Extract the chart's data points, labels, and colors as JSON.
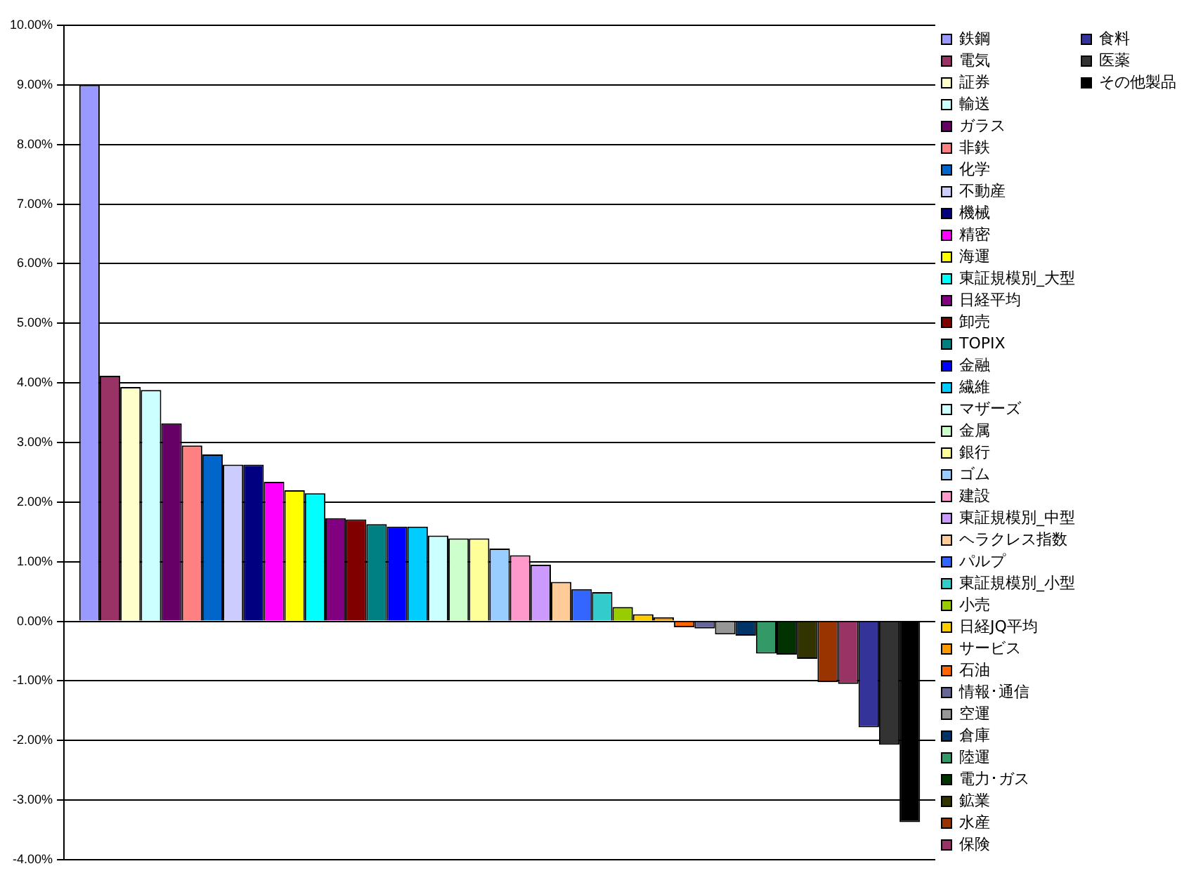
{
  "chart_data": {
    "type": "bar",
    "categories": [
      null
    ],
    "ylim": [
      -4,
      10
    ],
    "yticks": [
      {
        "value": -4,
        "label": "-4.00%"
      },
      {
        "value": -3,
        "label": "-3.00%"
      },
      {
        "value": -2,
        "label": "-2.00%"
      },
      {
        "value": -1,
        "label": "-1.00%"
      },
      {
        "value": 0,
        "label": "0.00%"
      },
      {
        "value": 1,
        "label": "1.00%"
      },
      {
        "value": 2,
        "label": "2.00%"
      },
      {
        "value": 3,
        "label": "3.00%"
      },
      {
        "value": 4,
        "label": "4.00%"
      },
      {
        "value": 5,
        "label": "5.00%"
      },
      {
        "value": 6,
        "label": "6.00%"
      },
      {
        "value": 7,
        "label": "7.00%"
      },
      {
        "value": 8,
        "label": "8.00%"
      },
      {
        "value": 9,
        "label": "9.00%"
      },
      {
        "value": 10,
        "label": "10.00%"
      }
    ],
    "grid": "y",
    "legend": "right",
    "tick_labels": "y",
    "series": [
      {
        "name": "鉄鋼",
        "color": "#9999ff",
        "values": [
          9.0
        ]
      },
      {
        "name": "電気",
        "color": "#993366",
        "values": [
          4.12
        ]
      },
      {
        "name": "証券",
        "color": "#ffffcc",
        "values": [
          3.93
        ]
      },
      {
        "name": "輸送",
        "color": "#ccffff",
        "values": [
          3.88
        ]
      },
      {
        "name": "ガラス",
        "color": "#660066",
        "values": [
          3.32
        ]
      },
      {
        "name": "非鉄",
        "color": "#ff8080",
        "values": [
          2.95
        ]
      },
      {
        "name": "化学",
        "color": "#0066cc",
        "values": [
          2.8
        ]
      },
      {
        "name": "不動産",
        "color": "#ccccff",
        "values": [
          2.63
        ]
      },
      {
        "name": "機械",
        "color": "#000080",
        "values": [
          2.63
        ]
      },
      {
        "name": "精密",
        "color": "#ff00ff",
        "values": [
          2.34
        ]
      },
      {
        "name": "海運",
        "color": "#ffff00",
        "values": [
          2.2
        ]
      },
      {
        "name": "東証規模別_大型",
        "color": "#00ffff",
        "values": [
          2.15
        ]
      },
      {
        "name": "日経平均",
        "color": "#800080",
        "values": [
          1.73
        ]
      },
      {
        "name": "卸売",
        "color": "#800000",
        "values": [
          1.71
        ]
      },
      {
        "name": "TOPIX",
        "color": "#008080",
        "values": [
          1.63
        ]
      },
      {
        "name": "金融",
        "color": "#0000ff",
        "values": [
          1.59
        ]
      },
      {
        "name": "繊維",
        "color": "#00ccff",
        "values": [
          1.59
        ]
      },
      {
        "name": "マザーズ",
        "color": "#ccffff",
        "values": [
          1.44
        ]
      },
      {
        "name": "金属",
        "color": "#ccffcc",
        "values": [
          1.39
        ]
      },
      {
        "name": "銀行",
        "color": "#ffff99",
        "values": [
          1.39
        ]
      },
      {
        "name": "ゴム",
        "color": "#99ccff",
        "values": [
          1.22
        ]
      },
      {
        "name": "建設",
        "color": "#ff99cc",
        "values": [
          1.11
        ]
      },
      {
        "name": "東証規模別_中型",
        "color": "#cc99ff",
        "values": [
          0.95
        ]
      },
      {
        "name": "ヘラクレス指数",
        "color": "#ffcc99",
        "values": [
          0.66
        ]
      },
      {
        "name": "パルプ",
        "color": "#3366ff",
        "values": [
          0.54
        ]
      },
      {
        "name": "東証規模別_小型",
        "color": "#33cccc",
        "values": [
          0.49
        ]
      },
      {
        "name": "小売",
        "color": "#99cc00",
        "values": [
          0.24
        ]
      },
      {
        "name": "日経JQ平均",
        "color": "#ffcc00",
        "values": [
          0.12
        ]
      },
      {
        "name": "サービス",
        "color": "#ff9900",
        "values": [
          0.07
        ]
      },
      {
        "name": "石油",
        "color": "#ff6600",
        "values": [
          -0.1
        ]
      },
      {
        "name": "情報･通信",
        "color": "#666699",
        "values": [
          -0.12
        ]
      },
      {
        "name": "空運",
        "color": "#969696",
        "values": [
          -0.22
        ]
      },
      {
        "name": "倉庫",
        "color": "#003366",
        "values": [
          -0.24
        ]
      },
      {
        "name": "陸運",
        "color": "#339966",
        "values": [
          -0.54
        ]
      },
      {
        "name": "電力･ガス",
        "color": "#003300",
        "values": [
          -0.56
        ]
      },
      {
        "name": "鉱業",
        "color": "#333300",
        "values": [
          -0.63
        ]
      },
      {
        "name": "水産",
        "color": "#993300",
        "values": [
          -1.02
        ]
      },
      {
        "name": "保険",
        "color": "#993366",
        "values": [
          -1.05
        ]
      },
      {
        "name": "食料",
        "color": "#333399",
        "values": [
          -1.78
        ]
      },
      {
        "name": "医薬",
        "color": "#333333",
        "values": [
          -2.07
        ]
      },
      {
        "name": "その他製品",
        "color": "#000000",
        "values": [
          -3.37
        ]
      }
    ]
  }
}
